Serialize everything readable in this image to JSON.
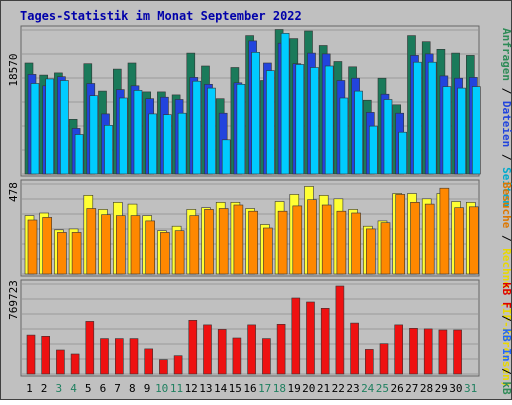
{
  "chart_data": [
    {
      "type": "bar",
      "title": "Tages-Statistik im Monat September 2022",
      "categories": [
        "1",
        "2",
        "3",
        "4",
        "5",
        "6",
        "7",
        "8",
        "9",
        "10",
        "11",
        "12",
        "13",
        "14",
        "15",
        "16",
        "17",
        "18",
        "19",
        "20",
        "21",
        "22",
        "23",
        "24",
        "25",
        "26",
        "27",
        "28",
        "29",
        "30",
        "31"
      ],
      "ylabel": "18570",
      "ymax_label": "18570",
      "ylim": [
        0,
        19200
      ],
      "right_label_parts": [
        {
          "text": "Anfragen",
          "color": "#2e8b57"
        },
        {
          "text": " / ",
          "color": "#000000"
        },
        {
          "text": "Dateien",
          "color": "#2244dd"
        },
        {
          "text": " / ",
          "color": "#000000"
        },
        {
          "text": "Seiten",
          "color": "#00aacc"
        }
      ],
      "series": [
        {
          "name": "Anfragen",
          "color": "#1a7a5a",
          "values": [
            14600,
            13000,
            13300,
            7200,
            14500,
            10900,
            13800,
            14600,
            10800,
            10800,
            10400,
            15900,
            14200,
            9900,
            14000,
            18200,
            12300,
            19000,
            17800,
            18800,
            16900,
            14800,
            14100,
            9700,
            12600,
            9100,
            18200,
            17400,
            16400,
            15900,
            15600
          ]
        },
        {
          "name": "Dateien",
          "color": "#2244dd",
          "values": [
            13100,
            11600,
            12800,
            6000,
            11900,
            7900,
            11100,
            11600,
            9900,
            10100,
            9800,
            12700,
            11800,
            8000,
            12000,
            17500,
            14600,
            17200,
            14500,
            15900,
            15800,
            12300,
            12600,
            8100,
            10500,
            8000,
            15600,
            15800,
            12900,
            12600,
            12700
          ]
        },
        {
          "name": "Seiten",
          "color": "#00ccff",
          "values": [
            11900,
            12500,
            12300,
            5200,
            10300,
            6400,
            10000,
            11000,
            7900,
            7800,
            8000,
            12200,
            11300,
            4500,
            11800,
            16000,
            13600,
            18500,
            14400,
            14000,
            14200,
            10000,
            10900,
            6300,
            9800,
            5500,
            14700,
            14700,
            11500,
            11300,
            11500
          ]
        }
      ]
    },
    {
      "type": "bar",
      "ylabel": "478",
      "ymax_label": "478",
      "ylim": [
        0,
        520
      ],
      "right_label_parts": [
        {
          "text": "Besuche",
          "color": "#dd7700"
        },
        {
          "text": " / ",
          "color": "#000000"
        },
        {
          "text": "Rechner (IP-Adressen)",
          "color": "#e8d800"
        }
      ],
      "series": [
        {
          "name": "Rechner (IP-Adressen)",
          "color": "#ffff33",
          "values": [
            330,
            345,
            250,
            255,
            445,
            365,
            405,
            395,
            330,
            245,
            270,
            365,
            375,
            405,
            405,
            370,
            280,
            410,
            450,
            495,
            445,
            425,
            365,
            270,
            300,
            455,
            455,
            425,
            455,
            410,
            405
          ]
        },
        {
          "name": "Besuche",
          "color": "#ff8800",
          "values": [
            305,
            320,
            235,
            235,
            370,
            335,
            330,
            330,
            300,
            235,
            245,
            330,
            365,
            370,
            390,
            355,
            260,
            355,
            385,
            420,
            390,
            355,
            345,
            255,
            290,
            450,
            405,
            395,
            485,
            375,
            380
          ]
        }
      ]
    },
    {
      "type": "bar",
      "ylabel": "769723",
      "ymax_label": "769723",
      "ylim": [
        0,
        805000
      ],
      "right_label_parts": [
        {
          "text": "kB F",
          "color": "#dd0000"
        },
        {
          "text": " / ",
          "color": "#000000"
        },
        {
          "text": "kB In",
          "color": "#2266ff"
        },
        {
          "text": " / ",
          "color": "#000000"
        },
        {
          "text": "kB Out",
          "color": "#2e8b57"
        }
      ],
      "series": [
        {
          "name": "kB F",
          "color": "#ee1111",
          "values": [
            340000,
            330000,
            210000,
            175000,
            460000,
            310000,
            310000,
            310000,
            220000,
            125000,
            160000,
            470000,
            430000,
            390000,
            315000,
            430000,
            310000,
            435000,
            665000,
            630000,
            575000,
            770000,
            445000,
            215000,
            265000,
            430000,
            400000,
            395000,
            385000,
            385000,
            0
          ]
        }
      ]
    }
  ],
  "x_axis": {
    "days": [
      "1",
      "2",
      "3",
      "4",
      "5",
      "6",
      "7",
      "8",
      "9",
      "10",
      "11",
      "12",
      "13",
      "14",
      "15",
      "16",
      "17",
      "18",
      "19",
      "20",
      "21",
      "22",
      "23",
      "24",
      "25",
      "26",
      "27",
      "28",
      "29",
      "30",
      "31"
    ],
    "weekend_color": "#208060",
    "weekday_color": "#000000",
    "weekend_days": [
      "3",
      "4",
      "10",
      "11",
      "17",
      "18",
      "24",
      "25",
      "31"
    ]
  },
  "colors": {
    "background": "#c0c0c0",
    "plot_background": "#c0c0c0",
    "title": "#0000aa",
    "border": "#888888"
  }
}
